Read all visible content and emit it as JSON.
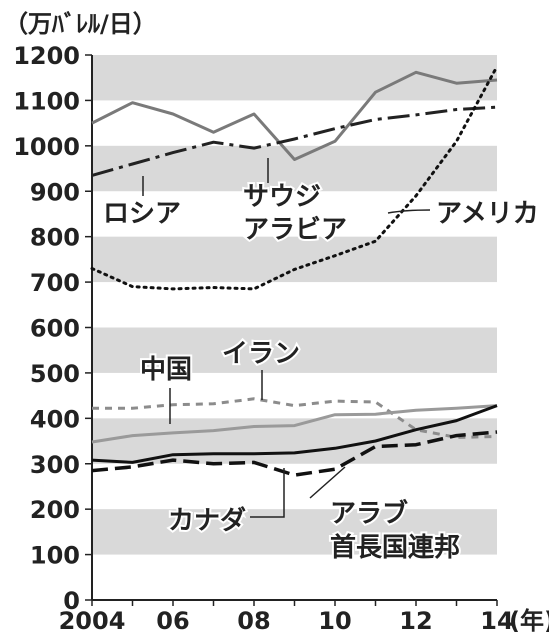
{
  "chart_data": {
    "type": "line",
    "unit_label": "（万ﾊﾞﾚﾙ/日）",
    "x_unit_label": "(年)",
    "x_ticks": [
      "2004",
      "06",
      "08",
      "10",
      "12",
      "14"
    ],
    "x": [
      2004,
      2005,
      2006,
      2007,
      2008,
      2009,
      2010,
      2011,
      2012,
      2013,
      2014
    ],
    "xlim": [
      2004,
      2014
    ],
    "ylim": [
      0,
      1200
    ],
    "y_ticks": [
      0,
      100,
      200,
      300,
      400,
      500,
      600,
      700,
      800,
      900,
      1000,
      1100,
      1200
    ],
    "grid_bands": true,
    "series": [
      {
        "name": "サウジアラビア",
        "label_lines": [
          "サウジ",
          "アラビア"
        ],
        "style": "solid",
        "color": "#7a7a7a",
        "values": [
          1050,
          1095,
          1070,
          1030,
          1070,
          970,
          1010,
          1118,
          1162,
          1138,
          1145
        ]
      },
      {
        "name": "ロシア",
        "label_lines": [
          "ロシア"
        ],
        "style": "dashdot",
        "color": "#222222",
        "values": [
          935,
          960,
          985,
          1008,
          995,
          1015,
          1038,
          1058,
          1068,
          1080,
          1085
        ]
      },
      {
        "name": "アメリカ",
        "label_lines": [
          "アメリカ"
        ],
        "style": "dotted",
        "color": "#111111",
        "values": [
          730,
          690,
          685,
          688,
          685,
          728,
          758,
          790,
          890,
          1010,
          1175
        ]
      },
      {
        "name": "イラン",
        "label_lines": [
          "イラン"
        ],
        "style": "dashed",
        "color": "#8c8c8c",
        "values": [
          422,
          422,
          430,
          432,
          443,
          428,
          438,
          436,
          375,
          358,
          360
        ]
      },
      {
        "name": "中国",
        "label_lines": [
          "中国"
        ],
        "style": "solid",
        "color": "#9a9a9a",
        "values": [
          348,
          362,
          368,
          373,
          382,
          384,
          408,
          409,
          418,
          422,
          428
        ]
      },
      {
        "name": "カナダ",
        "label_lines": [
          "カナダ"
        ],
        "style": "solid",
        "color": "#111111",
        "values": [
          308,
          303,
          320,
          322,
          322,
          324,
          334,
          350,
          375,
          395,
          428
        ]
      },
      {
        "name": "アラブ首長国連邦",
        "label_lines": [
          "アラブ",
          "首長国連邦"
        ],
        "style": "longdash",
        "color": "#111111",
        "values": [
          285,
          293,
          308,
          300,
          303,
          275,
          288,
          338,
          342,
          362,
          370
        ]
      }
    ]
  }
}
